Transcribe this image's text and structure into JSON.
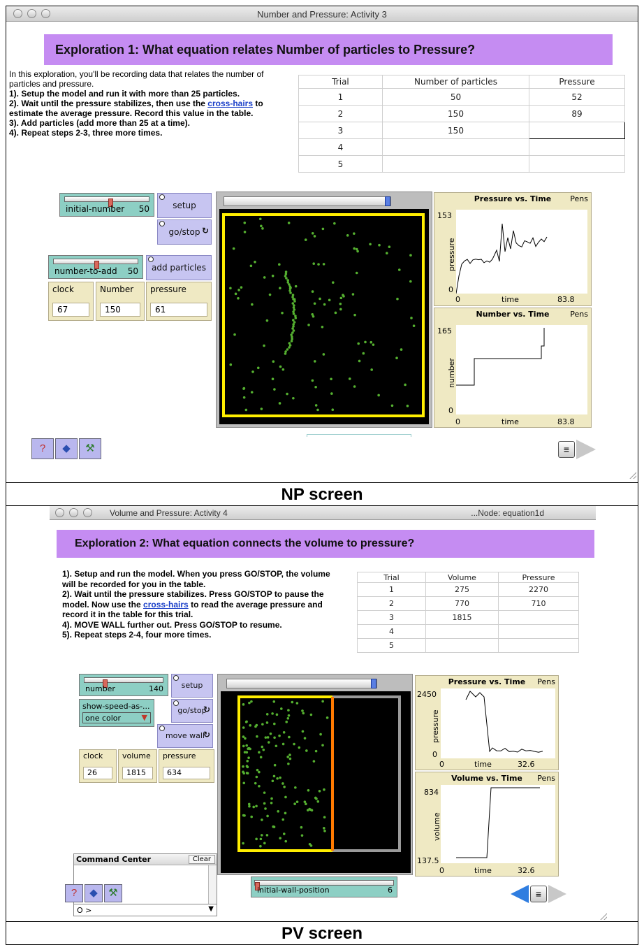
{
  "np": {
    "window_title": "Number and Pressure: Activity 3",
    "banner": "Exploration 1: What equation relates Number of particles to Pressure?",
    "intro": "In this exploration, you'll be recording data that relates the number of particles and pressure.",
    "step1": "1). Setup the model and run it with more than 25 particles.",
    "step2a": "2). Wait until the pressure stabilizes, then use the",
    "step2_link": "cross-hairs",
    "step2b": "to estimate the average pressure.  Record this value in the table.",
    "step3": "3). Add particles (add more than 25 at a time).",
    "step4": "4). Repeat steps 2-3, three more times.",
    "table": {
      "headers": [
        "Trial",
        "Number of particles",
        "Pressure"
      ],
      "rows": [
        [
          "1",
          "50",
          "52"
        ],
        [
          "2",
          "150",
          "89"
        ],
        [
          "3",
          "150",
          ""
        ],
        [
          "4",
          "",
          ""
        ],
        [
          "5",
          "",
          ""
        ]
      ]
    },
    "sliders": {
      "initial_number": {
        "label": "initial-number",
        "value": "50",
        "fraction": 0.5
      },
      "number_to_add": {
        "label": "number-to-add",
        "value": "50",
        "fraction": 0.5
      }
    },
    "buttons": {
      "setup": "setup",
      "go_stop": "go/stop",
      "add_particles": "add particles"
    },
    "monitors": {
      "clock": {
        "label": "clock",
        "value": "67"
      },
      "number": {
        "label": "Number",
        "value": "150"
      },
      "pressure": {
        "label": "pressure",
        "value": "61"
      }
    },
    "plot1": {
      "title": "Pressure vs. Time",
      "pens": "Pens",
      "ylabel": "pressure",
      "xlabel": "time",
      "ymax": "153",
      "ymin": "0",
      "xmin": "0",
      "xmax": "83.8"
    },
    "plot2": {
      "title": "Number vs. Time",
      "pens": "Pens",
      "ylabel": "number",
      "xlabel": "time",
      "ymax": "165",
      "ymin": "0",
      "xmin": "0",
      "xmax": "83.8"
    },
    "caption": "NP screen"
  },
  "pv": {
    "window_title": "Volume and Pressure: Activity 4",
    "window_node": "...Node: equation1d",
    "banner": "Exploration 2: What equation connects the volume to pressure?",
    "step1": "1). Setup and run the model.  When you press GO/STOP, the volume will be recorded for you in the table.",
    "step2a": "2). Wait until the pressure stabilizes.  Press GO/STOP to pause the model.  Now use the",
    "step2_link": "cross-hairs",
    "step2b": "to read the average pressure and record it in the table for this trial.",
    "step4": "4). MOVE WALL further out.  Press GO/STOP to resume.",
    "step5": "5). Repeat steps 2-4, four more times.",
    "table": {
      "headers": [
        "Trial",
        "Volume",
        "Pressure"
      ],
      "rows": [
        [
          "1",
          "275",
          "2270"
        ],
        [
          "2",
          "770",
          "710"
        ],
        [
          "3",
          "1815",
          ""
        ],
        [
          "4",
          "",
          ""
        ],
        [
          "5",
          "",
          ""
        ]
      ]
    },
    "sliders": {
      "number": {
        "label": "number",
        "value": "140",
        "fraction": 0.3
      },
      "initial_wall_position": {
        "label": "initial-wall-position",
        "value": "6",
        "fraction": 0.0
      }
    },
    "chooser": {
      "label": "show-speed-as-...",
      "value": "one color"
    },
    "buttons": {
      "setup": "setup",
      "go_stop": "go/stop",
      "move_wall": "move wall"
    },
    "monitors": {
      "clock": {
        "label": "clock",
        "value": "26"
      },
      "volume": {
        "label": "volume",
        "value": "1815"
      },
      "pressure": {
        "label": "pressure",
        "value": "634"
      }
    },
    "command_center": {
      "title": "Command Center",
      "clear": "Clear",
      "prompt": "O >"
    },
    "plot1": {
      "title": "Pressure vs. Time",
      "pens": "Pens",
      "ylabel": "pressure",
      "xlabel": "time",
      "ymax": "2450",
      "ymin": "0",
      "xmin": "0",
      "xmax": "32.6"
    },
    "plot2": {
      "title": "Volume vs. Time",
      "pens": "Pens",
      "ylabel": "volume",
      "xlabel": "time",
      "ymax": "834",
      "ymin": "137.5",
      "xmin": "0",
      "xmax": "32.6"
    },
    "caption": "PV screen"
  },
  "icons": [
    "help-icon",
    "book-icon",
    "tools-icon",
    "notes-icon",
    "next-arrow-icon",
    "back-arrow-icon"
  ],
  "colors": {
    "banner": "#c58cf2",
    "slider": "#8dcfc4",
    "button": "#c7c5f1",
    "monitor": "#efe9c3",
    "particle": "#55b030",
    "wall": "#ffee00",
    "movable_wall": "#ff7a00"
  }
}
